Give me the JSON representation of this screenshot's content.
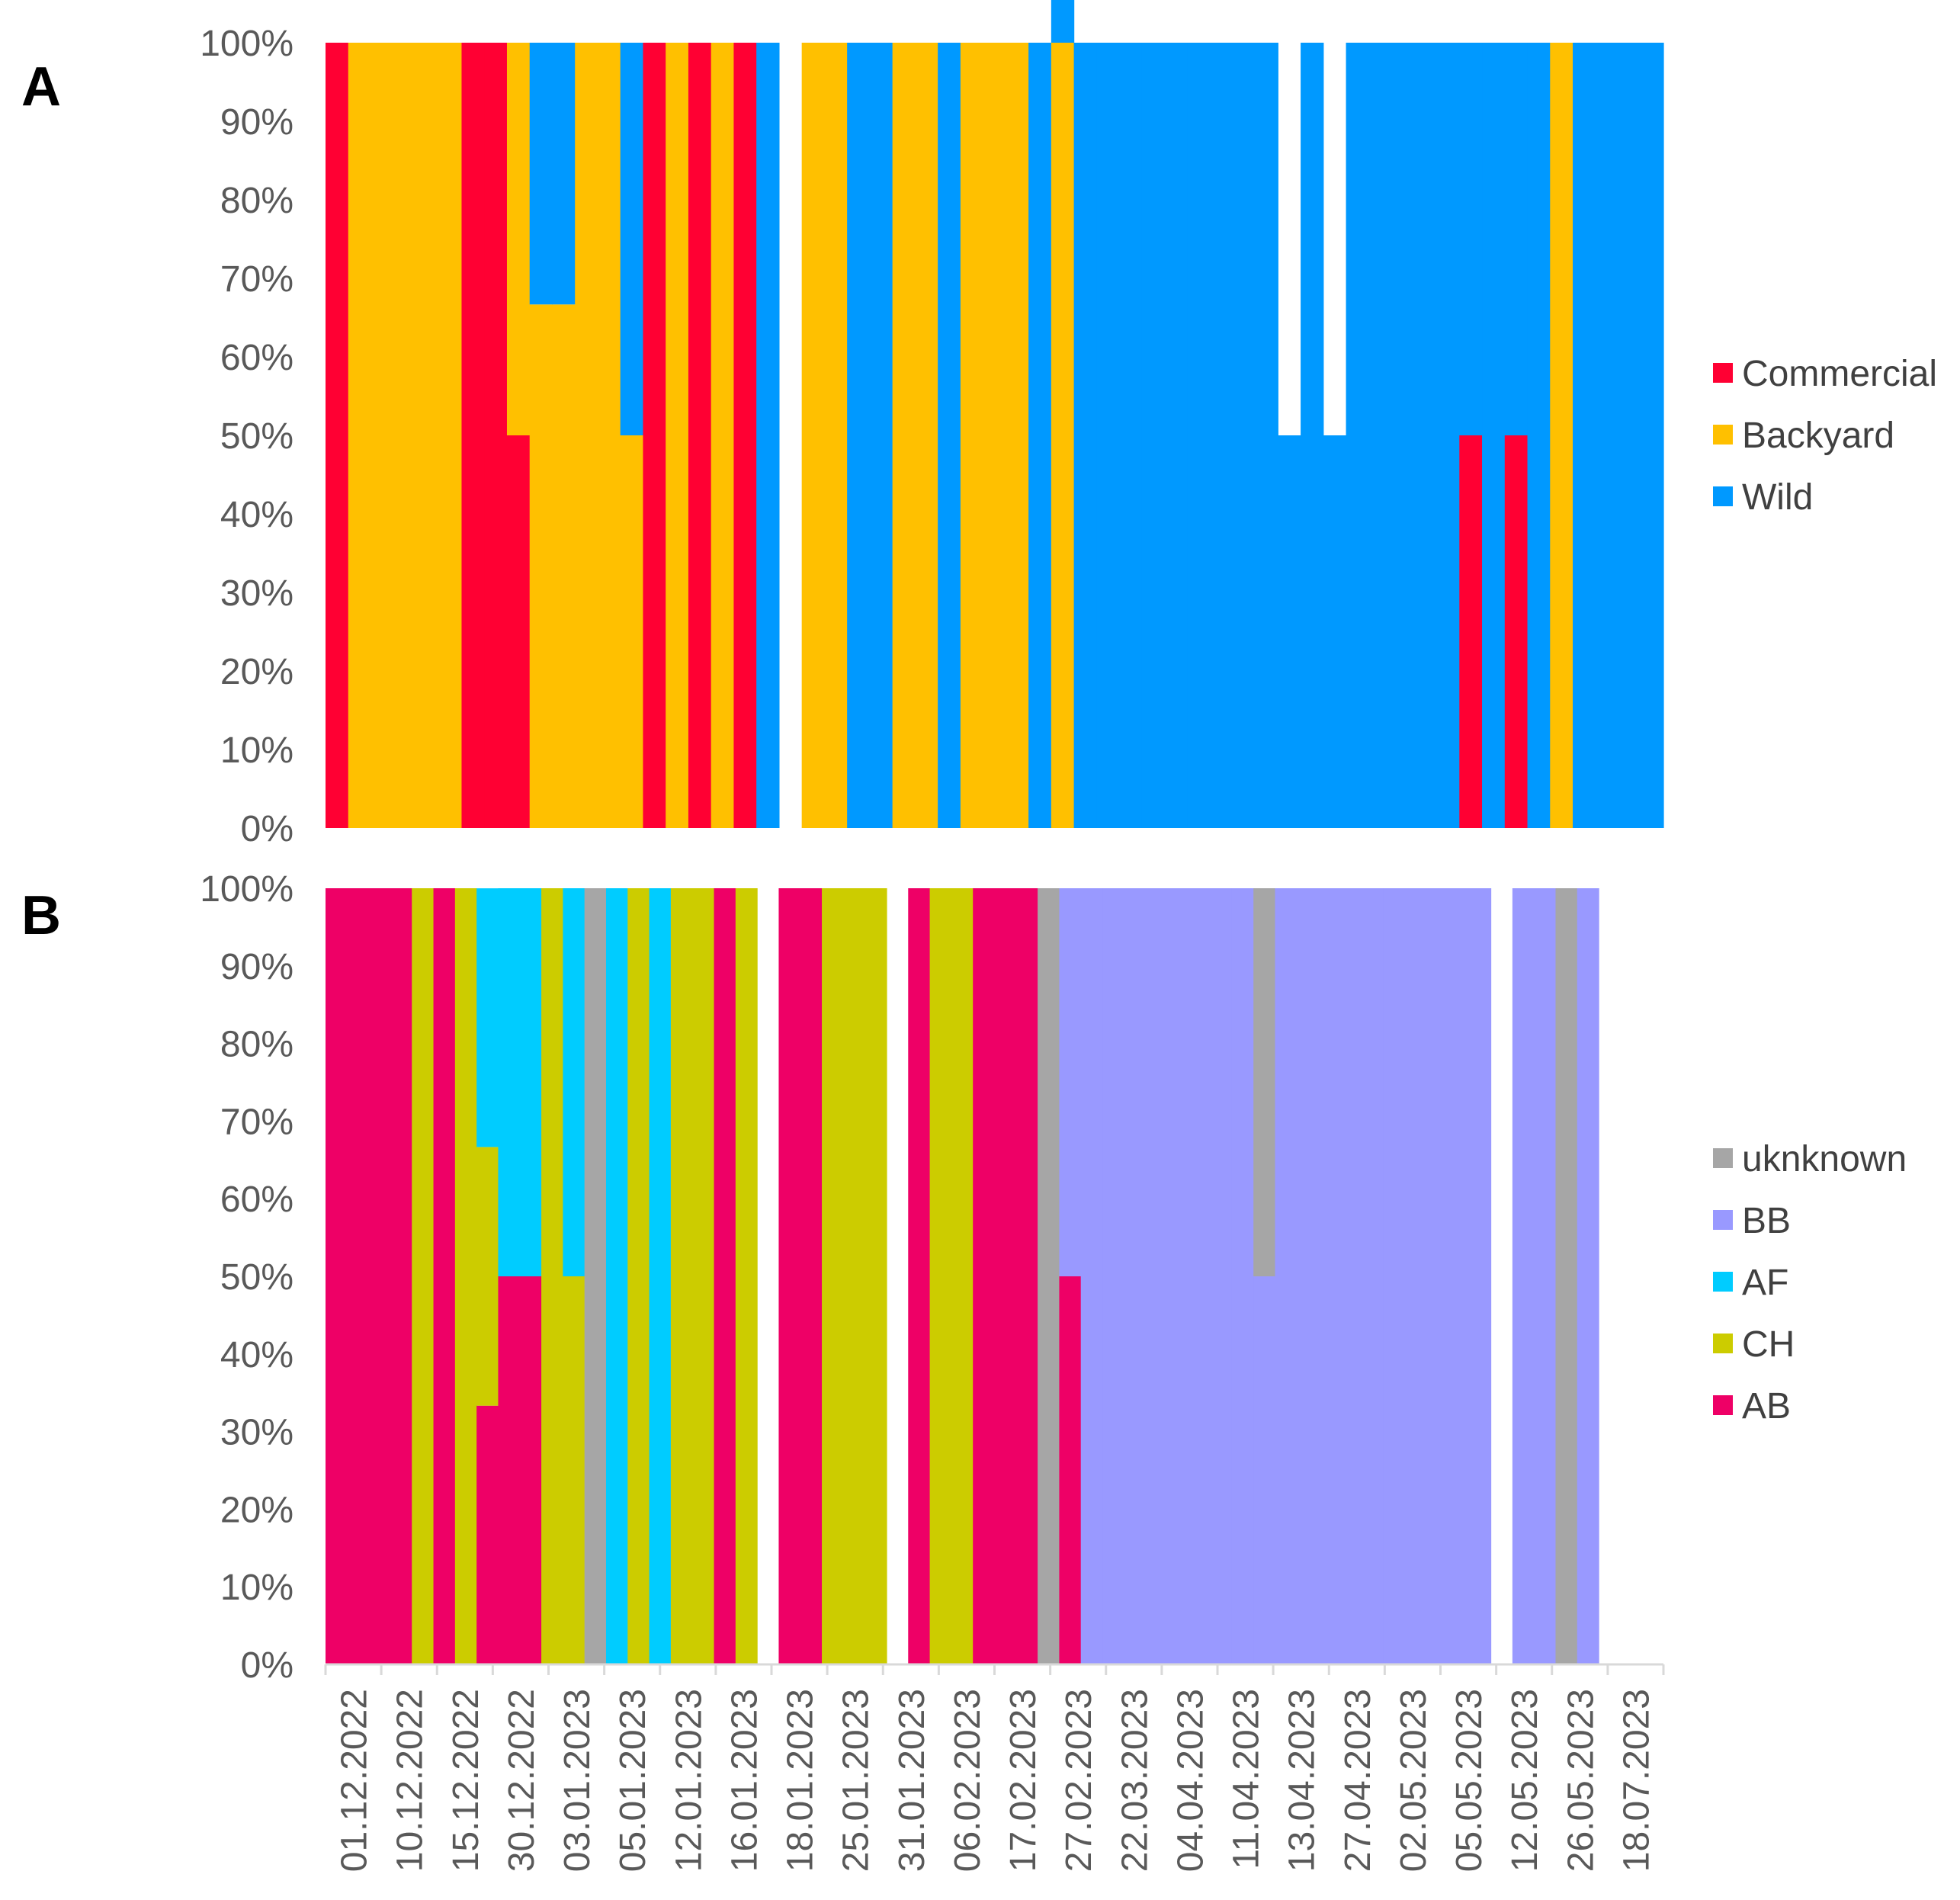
{
  "panels": {
    "a": {
      "letter": "A"
    },
    "b": {
      "letter": "B"
    }
  },
  "chart_data": [
    {
      "type": "bar",
      "stacked": true,
      "normalized": true,
      "panel": "A",
      "ylim": [
        0,
        100
      ],
      "yticks": [
        "0%",
        "10%",
        "20%",
        "30%",
        "40%",
        "50%",
        "60%",
        "70%",
        "80%",
        "90%",
        "100%"
      ],
      "legend_position": "right",
      "grid": false,
      "series": [
        {
          "name": "Commercial",
          "color": "#FF0033",
          "values": [
            100,
            0,
            0,
            0,
            0,
            0,
            100,
            100,
            50,
            0,
            0,
            0,
            0,
            0,
            100,
            0,
            100,
            0,
            100,
            0,
            0,
            0,
            0,
            0,
            0,
            0,
            0,
            0,
            0,
            0,
            0,
            0,
            0,
            0,
            0,
            0,
            0,
            0,
            0,
            0,
            0,
            0,
            0,
            0,
            0,
            0,
            0,
            0,
            0,
            0,
            50,
            0,
            50,
            0,
            0,
            0,
            0,
            0,
            0
          ]
        },
        {
          "name": "Backyard",
          "color": "#FFC000",
          "values": [
            0,
            100,
            100,
            100,
            100,
            100,
            0,
            0,
            50,
            66.67,
            66.67,
            100,
            100,
            50,
            0,
            100,
            0,
            100,
            0,
            0,
            0,
            100,
            100,
            0,
            0,
            100,
            100,
            0,
            100,
            100,
            100,
            0,
            100,
            0,
            0,
            0,
            0,
            0,
            0,
            0,
            0,
            0,
            0,
            0,
            0,
            0,
            0,
            0,
            0,
            0,
            0,
            0,
            0,
            0,
            100,
            0,
            0,
            0,
            0
          ]
        },
        {
          "name": "Wild",
          "color": "#0099FF",
          "values": [
            0,
            0,
            0,
            0,
            0,
            0,
            0,
            0,
            0,
            33.33,
            33.33,
            0,
            0,
            50,
            0,
            0,
            0,
            0,
            0,
            100,
            0,
            0,
            0,
            100,
            100,
            0,
            0,
            100,
            0,
            0,
            0,
            100,
            50,
            100,
            100,
            100,
            100,
            100,
            100,
            100,
            100,
            100,
            50,
            100,
            50,
            100,
            100,
            100,
            100,
            100,
            50,
            100,
            50,
            100,
            0,
            100,
            100,
            100,
            100
          ]
        }
      ]
    },
    {
      "type": "bar",
      "stacked": true,
      "normalized": true,
      "panel": "B",
      "ylim": [
        0,
        100
      ],
      "yticks": [
        "0%",
        "10%",
        "20%",
        "30%",
        "40%",
        "50%",
        "60%",
        "70%",
        "80%",
        "90%",
        "100%"
      ],
      "xticks": [
        "01.12.2022",
        "10.12.2022",
        "15.12.2022",
        "30.12.2022",
        "03.01.2023",
        "05.01.2023",
        "12.01.2023",
        "16.01.2023",
        "18.01.2023",
        "25.01.2023",
        "31.01.2023",
        "06.02.2023",
        "17.02.2023",
        "27.02.2023",
        "22.03.2023",
        "04.04.2023",
        "11.04.2023",
        "13.04.2023",
        "27.04.2023",
        "02.05.2023",
        "05.05.2023",
        "12.05.2023",
        "26.05.2023",
        "18.07.2023"
      ],
      "legend_position": "right",
      "grid": false,
      "series": [
        {
          "name": "AB",
          "color": "#EE0066",
          "values": [
            100,
            100,
            100,
            100,
            0,
            100,
            0,
            33.33,
            50,
            50,
            0,
            0,
            0,
            0,
            0,
            0,
            0,
            0,
            100,
            0,
            0,
            100,
            100,
            0,
            0,
            0,
            0,
            100,
            0,
            0,
            100,
            100,
            100,
            0,
            50,
            0,
            0,
            0,
            0,
            0,
            0,
            0,
            0,
            0,
            0,
            0,
            0,
            0,
            0,
            0,
            0,
            0,
            0,
            0,
            0,
            0,
            0,
            0,
            0,
            0,
            0,
            0
          ]
        },
        {
          "name": "CH",
          "color": "#CCCC00",
          "values": [
            0,
            0,
            0,
            0,
            100,
            0,
            100,
            33.33,
            0,
            0,
            100,
            50,
            0,
            0,
            100,
            0,
            100,
            100,
            0,
            100,
            0,
            0,
            0,
            100,
            100,
            100,
            0,
            0,
            100,
            100,
            0,
            0,
            0,
            0,
            0,
            0,
            0,
            0,
            0,
            0,
            0,
            0,
            0,
            0,
            0,
            0,
            0,
            0,
            0,
            0,
            0,
            0,
            0,
            0,
            0,
            0,
            0,
            0,
            0,
            0,
            0,
            0
          ]
        },
        {
          "name": "AF",
          "color": "#00CCFF",
          "values": [
            0,
            0,
            0,
            0,
            0,
            0,
            0,
            33.33,
            50,
            50,
            0,
            50,
            0,
            100,
            0,
            100,
            0,
            0,
            0,
            0,
            0,
            0,
            0,
            0,
            0,
            0,
            0,
            0,
            0,
            0,
            0,
            0,
            0,
            0,
            0,
            0,
            0,
            0,
            0,
            0,
            0,
            0,
            0,
            0,
            0,
            0,
            0,
            0,
            0,
            0,
            0,
            0,
            0,
            0,
            0,
            0,
            0,
            0,
            0,
            0,
            0,
            0
          ]
        },
        {
          "name": "BB",
          "color": "#9999FF",
          "values": [
            0,
            0,
            0,
            0,
            0,
            0,
            0,
            0,
            0,
            0,
            0,
            0,
            0,
            0,
            0,
            0,
            0,
            0,
            0,
            0,
            0,
            0,
            0,
            0,
            0,
            0,
            0,
            0,
            0,
            0,
            0,
            0,
            0,
            0,
            50,
            100,
            100,
            100,
            100,
            100,
            100,
            100,
            100,
            50,
            100,
            100,
            100,
            100,
            100,
            100,
            100,
            100,
            100,
            100,
            0,
            100,
            100,
            0,
            100,
            0,
            0,
            0
          ]
        },
        {
          "name": "uknknown",
          "color": "#A6A6A6",
          "values": [
            0,
            0,
            0,
            0,
            0,
            0,
            0,
            0,
            0,
            0,
            0,
            0,
            100,
            0,
            0,
            0,
            0,
            0,
            0,
            0,
            0,
            0,
            0,
            0,
            0,
            0,
            0,
            0,
            0,
            0,
            0,
            0,
            0,
            100,
            0,
            0,
            0,
            0,
            0,
            0,
            0,
            0,
            0,
            50,
            0,
            0,
            0,
            0,
            0,
            0,
            0,
            0,
            0,
            0,
            0,
            0,
            0,
            100,
            0,
            0,
            0,
            0
          ]
        }
      ]
    }
  ]
}
